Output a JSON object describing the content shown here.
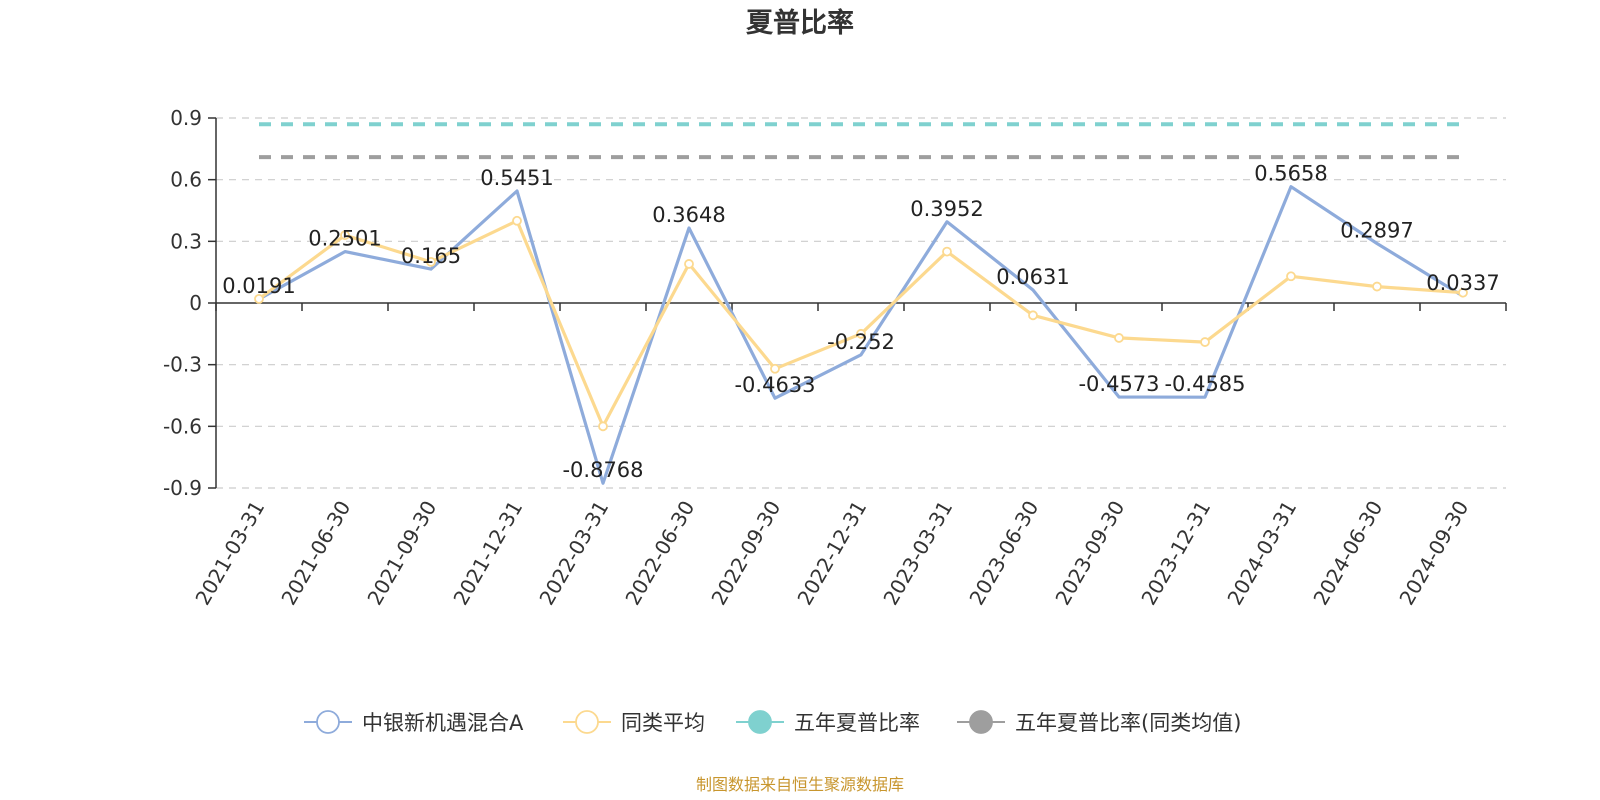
{
  "chart_data": {
    "type": "line",
    "title": "夏普比率",
    "x": [
      "2021-03-31",
      "2021-06-30",
      "2021-09-30",
      "2021-12-31",
      "2022-03-31",
      "2022-06-30",
      "2022-09-30",
      "2022-12-31",
      "2023-03-31",
      "2023-06-30",
      "2023-09-30",
      "2023-12-31",
      "2024-03-31",
      "2024-06-30",
      "2024-09-30"
    ],
    "ylim": [
      -0.9,
      0.9
    ],
    "yticks": [
      0.9,
      0.6,
      0.3,
      0,
      -0.3,
      -0.6,
      -0.9
    ],
    "ytick_labels": [
      "0.9",
      "0.6",
      "0.3",
      "0",
      "-0.3",
      "-0.6",
      "-0.9"
    ],
    "grid": true,
    "legend_position": "bottom",
    "series": [
      {
        "name": "中银新机遇混合A",
        "color": "#8eabdb",
        "values": [
          0.0191,
          0.2501,
          0.165,
          0.5451,
          -0.8768,
          0.3648,
          -0.4633,
          -0.252,
          0.3952,
          0.0631,
          -0.4573,
          -0.4585,
          0.5658,
          0.2897,
          0.0337
        ],
        "labels": [
          "0.0191",
          "0.2501",
          "0.165",
          "0.5451",
          "-0.8768",
          "0.3648",
          "-0.4633",
          "-0.252",
          "0.3952",
          "0.0631",
          "-0.4573",
          "-0.4585",
          "0.5658",
          "0.2897",
          "0.0337"
        ]
      },
      {
        "name": "同类平均",
        "color": "#fcd98f",
        "values": [
          0.02,
          0.33,
          0.2,
          0.4,
          -0.6,
          0.19,
          -0.32,
          -0.15,
          0.25,
          -0.06,
          -0.17,
          -0.19,
          0.13,
          0.08,
          0.05
        ]
      },
      {
        "name": "五年夏普比率",
        "color": "#7fd1cf",
        "values": [
          0.87,
          0.87,
          0.87,
          0.87,
          0.87,
          0.87,
          0.87,
          0.87,
          0.87,
          0.87,
          0.87,
          0.87,
          0.87,
          0.87,
          0.87
        ]
      },
      {
        "name": "五年夏普比率(同类均值)",
        "color": "#9e9e9e",
        "values": [
          0.71,
          0.71,
          0.71,
          0.71,
          0.71,
          0.71,
          0.71,
          0.71,
          0.71,
          0.71,
          0.71,
          0.71,
          0.71,
          0.71,
          0.71
        ]
      }
    ]
  },
  "source_note": "制图数据来自恒生聚源数据库"
}
